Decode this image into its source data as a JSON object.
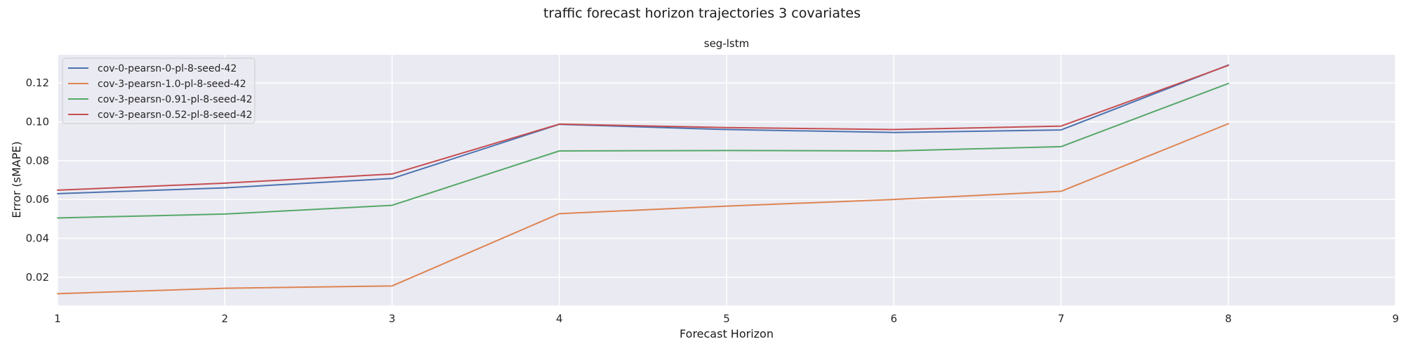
{
  "figure": {
    "suptitle": "traffic forecast horizon trajectories 3 covariates"
  },
  "chart_data": {
    "type": "line",
    "title": "seg-lstm",
    "xlabel": "Forecast Horizon",
    "ylabel": "Error (sMAPE)",
    "xlim": [
      1,
      9
    ],
    "ylim": [
      0.0055,
      0.1345
    ],
    "xticks": [
      1,
      2,
      3,
      4,
      5,
      6,
      7,
      8,
      9
    ],
    "yticks": [
      0.02,
      0.04,
      0.06,
      0.08,
      0.1,
      0.12
    ],
    "ytick_labels": [
      "0.02",
      "0.04",
      "0.06",
      "0.08",
      "0.10",
      "0.12"
    ],
    "grid": true,
    "legend_position": "top-left",
    "x": [
      1,
      2,
      3,
      4,
      5,
      6,
      7,
      8
    ],
    "series": [
      {
        "name": "cov-0-pearsn-0-pl-8-seed-42",
        "color": "#4c72b0",
        "values": [
          0.063,
          0.066,
          0.0708,
          0.0987,
          0.096,
          0.0945,
          0.0958,
          0.1292
        ]
      },
      {
        "name": "cov-3-pearsn-1.0-pl-8-seed-42",
        "color": "#dd8452",
        "values": [
          0.0115,
          0.0143,
          0.0155,
          0.0527,
          0.0566,
          0.06,
          0.0642,
          0.099
        ]
      },
      {
        "name": "cov-3-pearsn-0.91-pl-8-seed-42",
        "color": "#55a868",
        "values": [
          0.0505,
          0.0525,
          0.057,
          0.085,
          0.0852,
          0.085,
          0.0872,
          0.1197
        ]
      },
      {
        "name": "cov-3-pearsn-0.52-pl-8-seed-42",
        "color": "#c44e52",
        "values": [
          0.0648,
          0.0684,
          0.0731,
          0.0988,
          0.097,
          0.096,
          0.0978,
          0.129
        ]
      }
    ]
  }
}
